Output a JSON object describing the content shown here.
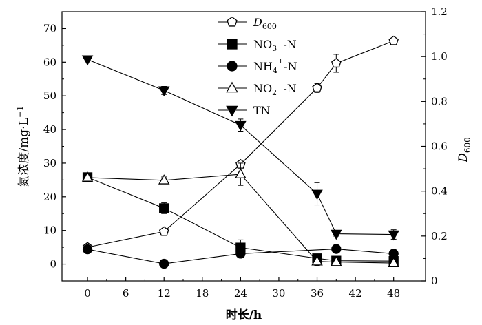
{
  "chart_data": {
    "type": "line",
    "x_axis": {
      "label": "时长/h",
      "range": [
        -4,
        53
      ],
      "ticks": [
        0,
        6,
        12,
        18,
        24,
        30,
        36,
        42,
        48
      ]
    },
    "y_axis_left": {
      "label": "氮浓度/mg·L",
      "label_sup": "−1",
      "range": [
        -5,
        75
      ],
      "ticks": [
        0,
        10,
        20,
        30,
        40,
        50,
        60,
        70
      ]
    },
    "y_axis_right": {
      "label_main": "D",
      "label_sub": "600",
      "range": [
        0,
        1.2
      ],
      "ticks": [
        0,
        0.2,
        0.4,
        0.6,
        0.8,
        1.0,
        1.2
      ],
      "tick_labels": [
        "0",
        "0.2",
        "0.4",
        "0.6",
        "0.8",
        "1.0",
        "1.2"
      ]
    },
    "grid": false,
    "legend_position": "top-center",
    "legend": [
      {
        "key": "d600",
        "parts": [
          {
            "t": "D",
            "style": "italic"
          },
          {
            "t": "600",
            "style": "sub"
          }
        ]
      },
      {
        "key": "no3",
        "parts": [
          {
            "t": "NO"
          },
          {
            "t": "3",
            "style": "sub"
          },
          {
            "t": "−",
            "style": "sup"
          },
          {
            "t": "-N"
          }
        ]
      },
      {
        "key": "nh4",
        "parts": [
          {
            "t": "NH"
          },
          {
            "t": "4",
            "style": "sub"
          },
          {
            "t": "+",
            "style": "sup"
          },
          {
            "t": "-N"
          }
        ]
      },
      {
        "key": "no2",
        "parts": [
          {
            "t": "NO"
          },
          {
            "t": "2",
            "style": "sub"
          },
          {
            "t": "−",
            "style": "sup"
          },
          {
            "t": "-N"
          }
        ]
      },
      {
        "key": "tn",
        "parts": [
          {
            "t": "TN"
          }
        ]
      }
    ],
    "series": [
      {
        "key": "d600",
        "axis": "right",
        "marker": "pentagon-open",
        "x": [
          0,
          12,
          24,
          36,
          39,
          48
        ],
        "y": [
          0.15,
          0.22,
          0.52,
          0.86,
          0.97,
          1.07
        ],
        "err": [
          0.01,
          0.01,
          0.01,
          0.02,
          0.04,
          0.01
        ]
      },
      {
        "key": "no3",
        "axis": "left",
        "marker": "square-filled",
        "x": [
          0,
          12,
          24,
          36,
          39,
          48
        ],
        "y": [
          25.8,
          16.6,
          4.9,
          1.7,
          1.0,
          0.9
        ],
        "err": [
          0.6,
          1.6,
          2.3,
          0.5,
          0.4,
          0.3
        ]
      },
      {
        "key": "nh4",
        "axis": "left",
        "marker": "circle-filled",
        "x": [
          0,
          12,
          24,
          39,
          48
        ],
        "y": [
          4.4,
          0.1,
          3.1,
          4.5,
          3.1
        ],
        "err": [
          0.3,
          0.2,
          0.5,
          0.4,
          0.3
        ]
      },
      {
        "key": "no2",
        "axis": "left",
        "marker": "triangle-up-open",
        "x": [
          0,
          12,
          24,
          36,
          39,
          48
        ],
        "y": [
          25.7,
          24.9,
          26.7,
          0.8,
          0.6,
          0.3
        ],
        "err": [
          0.5,
          1.0,
          3.3,
          1.2,
          0.4,
          0.3
        ]
      },
      {
        "key": "tn",
        "axis": "left",
        "marker": "triangle-down-filled",
        "x": [
          0,
          12,
          24,
          36,
          39,
          48
        ],
        "y": [
          60.8,
          51.6,
          41.3,
          20.9,
          9.0,
          8.8
        ],
        "err": [
          0.5,
          1.2,
          1.8,
          3.3,
          0.7,
          1.4
        ]
      }
    ]
  }
}
